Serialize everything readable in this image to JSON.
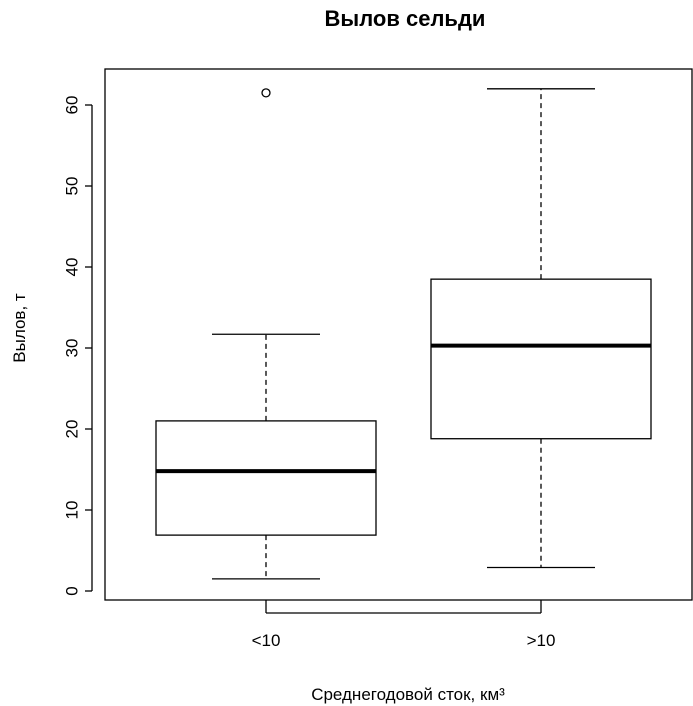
{
  "chart_data": {
    "type": "boxplot",
    "title": "Вылов сельди",
    "xlabel": "Среднегодовой сток, км³",
    "ylabel": "Вылов, т",
    "categories": [
      "<10",
      ">10"
    ],
    "boxes": [
      {
        "category": "<10",
        "min": 1.5,
        "q1": 6.9,
        "median": 14.8,
        "q3": 21.0,
        "max": 31.7,
        "outliers": [
          61.5
        ]
      },
      {
        "category": ">10",
        "min": 2.9,
        "q1": 18.8,
        "median": 30.3,
        "q3": 38.5,
        "max": 62.0,
        "outliers": []
      }
    ],
    "ylim": [
      0,
      60
    ],
    "yticks": [
      0,
      10,
      20,
      30,
      40,
      50,
      60
    ],
    "grid": false,
    "legend": "none"
  }
}
